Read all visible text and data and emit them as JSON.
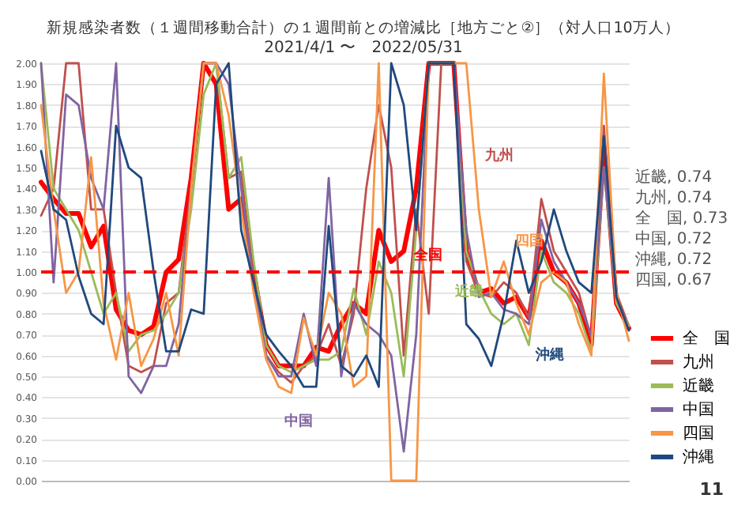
{
  "chart_data": {
    "type": "line",
    "title": "新規感染者数（１週間移動合計）の１週間前との増減比［地方ごと②］（対人口10万人）",
    "subtitle": "2021/4/1 〜　2022/05/31",
    "categories": [
      null,
      null,
      null,
      null,
      null,
      null,
      null,
      null,
      null,
      null,
      null,
      null,
      null,
      null,
      null,
      null,
      null,
      null,
      null,
      null,
      null,
      null,
      null,
      null,
      null,
      null,
      null,
      null,
      null,
      null,
      null,
      null,
      null,
      null,
      null,
      null,
      null,
      null,
      null,
      null,
      null,
      null,
      null,
      null,
      null,
      null,
      null,
      null
    ],
    "series": [
      {
        "name": "全　国",
        "color": "#ff0000",
        "values": [
          1.43,
          1.35,
          1.28,
          1.28,
          1.12,
          1.22,
          0.82,
          0.72,
          0.7,
          0.74,
          1.0,
          1.06,
          1.45,
          2.0,
          1.9,
          1.3,
          1.35,
          1.0,
          0.65,
          0.55,
          0.55,
          0.55,
          0.64,
          0.62,
          0.75,
          0.85,
          0.8,
          1.2,
          1.05,
          1.1,
          1.4,
          2.0,
          2.0,
          2.0,
          1.1,
          0.9,
          0.92,
          0.85,
          0.88,
          0.78,
          1.15,
          1.0,
          0.95,
          0.85,
          0.65,
          1.6,
          0.85,
          0.73
        ]
      },
      {
        "name": "九州",
        "color": "#c0504d",
        "values": [
          1.27,
          1.4,
          2.0,
          2.0,
          1.3,
          1.3,
          0.9,
          0.55,
          0.52,
          0.55,
          0.85,
          0.9,
          1.4,
          2.0,
          2.0,
          1.45,
          1.48,
          0.95,
          0.6,
          0.52,
          0.47,
          0.55,
          0.6,
          0.75,
          0.55,
          0.8,
          1.4,
          1.8,
          1.5,
          0.6,
          1.3,
          0.8,
          2.0,
          2.0,
          1.05,
          0.9,
          0.88,
          0.95,
          0.9,
          0.78,
          1.35,
          1.1,
          1.0,
          0.9,
          0.68,
          1.7,
          0.9,
          0.74
        ]
      },
      {
        "name": "近畿",
        "color": "#9bbb59",
        "values": [
          2.0,
          1.4,
          1.3,
          1.2,
          1.0,
          0.8,
          0.9,
          0.62,
          0.7,
          0.72,
          0.8,
          0.9,
          1.3,
          1.85,
          2.0,
          1.45,
          1.55,
          1.05,
          0.65,
          0.55,
          0.52,
          0.55,
          0.58,
          0.58,
          0.62,
          0.92,
          0.7,
          1.05,
          0.9,
          0.5,
          1.2,
          2.0,
          2.0,
          2.0,
          1.1,
          0.92,
          0.8,
          0.75,
          0.8,
          0.65,
          1.1,
          0.95,
          0.9,
          0.8,
          0.62,
          1.5,
          0.85,
          0.74
        ]
      },
      {
        "name": "中国",
        "color": "#8064a2",
        "values": [
          2.0,
          0.95,
          1.85,
          1.8,
          1.45,
          1.3,
          2.0,
          0.5,
          0.42,
          0.55,
          0.55,
          0.75,
          1.4,
          2.0,
          2.0,
          1.9,
          1.4,
          0.95,
          0.6,
          0.5,
          0.5,
          0.8,
          0.55,
          1.45,
          0.5,
          0.85,
          0.75,
          0.7,
          0.6,
          0.14,
          0.7,
          2.0,
          2.0,
          2.0,
          1.2,
          0.88,
          0.9,
          0.82,
          0.8,
          0.75,
          1.25,
          1.05,
          0.95,
          0.85,
          0.7,
          1.5,
          0.88,
          0.72
        ]
      },
      {
        "name": "四国",
        "color": "#f79646",
        "values": [
          1.8,
          1.3,
          0.9,
          1.0,
          1.55,
          0.85,
          0.58,
          0.9,
          0.55,
          0.68,
          0.9,
          0.6,
          1.4,
          2.0,
          2.0,
          1.75,
          1.3,
          0.9,
          0.58,
          0.45,
          0.42,
          0.78,
          0.6,
          0.9,
          0.8,
          0.45,
          0.5,
          2.0,
          0.0,
          0.0,
          0.0,
          2.0,
          2.0,
          2.0,
          2.0,
          1.3,
          0.88,
          1.05,
          0.85,
          0.7,
          0.95,
          1.0,
          0.95,
          0.75,
          0.6,
          1.95,
          0.9,
          0.67
        ]
      },
      {
        "name": "沖縄",
        "color": "#1f497d",
        "values": [
          1.58,
          1.3,
          1.25,
          0.98,
          0.8,
          0.75,
          1.7,
          1.5,
          1.45,
          1.0,
          0.62,
          0.62,
          0.82,
          0.8,
          1.9,
          2.0,
          1.2,
          0.95,
          0.7,
          0.62,
          0.55,
          0.45,
          0.45,
          1.22,
          0.55,
          0.5,
          0.6,
          0.45,
          2.0,
          1.8,
          1.2,
          2.0,
          2.0,
          2.0,
          0.75,
          0.68,
          0.55,
          0.8,
          1.15,
          0.9,
          1.05,
          1.3,
          1.1,
          0.95,
          0.9,
          1.65,
          0.88,
          0.72
        ]
      }
    ],
    "ylim": [
      0,
      2
    ],
    "yticks": [
      {
        "value": 0,
        "label": "0.00"
      },
      {
        "value": 0.1,
        "label": "0.10"
      },
      {
        "value": 0.2,
        "label": "0.20"
      },
      {
        "value": 0.3,
        "label": "0.30"
      },
      {
        "value": 0.4,
        "label": "0.40"
      },
      {
        "value": 0.5,
        "label": "0.50"
      },
      {
        "value": 0.6,
        "label": "0.60"
      },
      {
        "value": 0.7,
        "label": "0.70"
      },
      {
        "value": 0.8,
        "label": "0.80"
      },
      {
        "value": 0.9,
        "label": "0.90"
      },
      {
        "value": 1,
        "label": "1.00"
      },
      {
        "value": 1.1,
        "label": "1.10"
      },
      {
        "value": 1.2,
        "label": "1.20"
      },
      {
        "value": 1.3,
        "label": "1.30"
      },
      {
        "value": 1.4,
        "label": "1.40"
      },
      {
        "value": 1.5,
        "label": "1.50"
      },
      {
        "value": 1.6,
        "label": "1.60"
      },
      {
        "value": 1.7,
        "label": "1.70"
      },
      {
        "value": 1.8,
        "label": "1.80"
      },
      {
        "value": 1.9,
        "label": "1.90"
      },
      {
        "value": 2,
        "label": "2.00"
      }
    ],
    "ref_lines": [
      {
        "axis": "y",
        "value": 1,
        "color": "#ff0000",
        "line_style": "dashed"
      }
    ],
    "annotations": [
      "九州",
      "四国",
      "全国",
      "近畿",
      "沖縄",
      "中国",
      "近畿, 0.74",
      "九州, 0.74",
      "全　国, 0.73",
      "中国, 0.72",
      "沖縄, 0.72",
      "四国, 0.67",
      "11"
    ],
    "grid": "y",
    "legend": "bottom right",
    "tick_labels": "y"
  }
}
